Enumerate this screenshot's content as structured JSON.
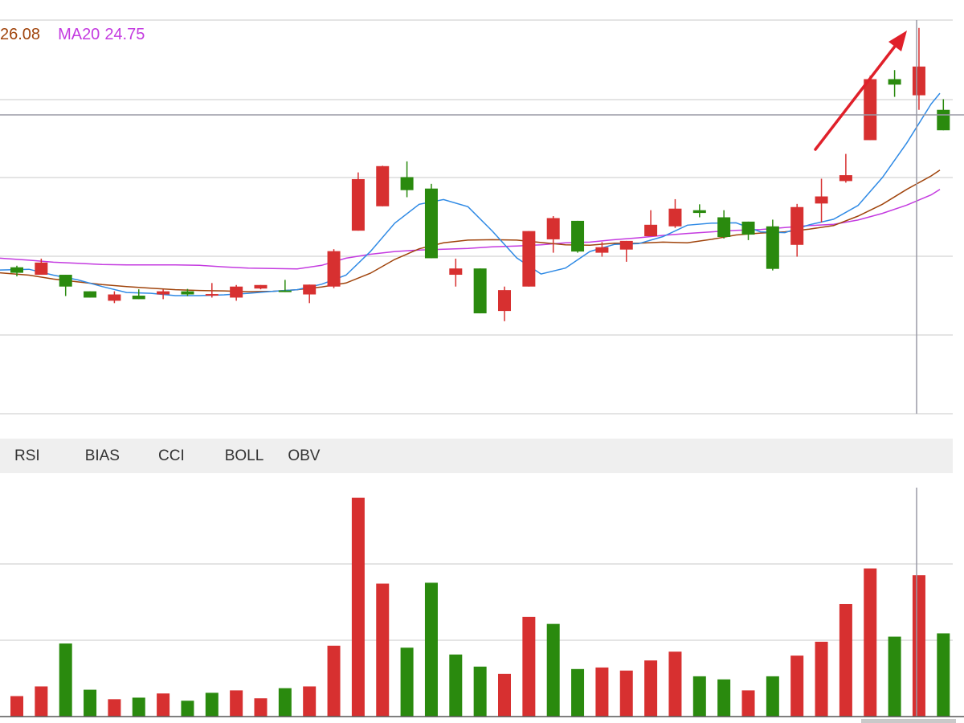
{
  "legend": {
    "ma10_value": "26.08",
    "ma20_label": "MA20",
    "ma20_value": "24.75"
  },
  "tabs": [
    "RSI",
    "BIAS",
    "CCI",
    "BOLL",
    "OBV"
  ],
  "colors": {
    "up": "#d73030",
    "down": "#2a8a0e",
    "ma5": "#2f8ae5",
    "ma10": "#a0440c",
    "ma20": "#c43be0",
    "grid": "#dcdcdc",
    "crosshair": "#9a9aa6",
    "arrow": "#e0202a"
  },
  "chart_data": [
    {
      "type": "candlestick",
      "panel": "price",
      "price_range": [
        0,
        100
      ],
      "candles": [
        {
          "o": 37.2,
          "c": 35.8,
          "h": 37.6,
          "l": 34.9
        },
        {
          "o": 35.3,
          "c": 38.4,
          "h": 39.4,
          "l": 35.3
        },
        {
          "o": 35.3,
          "c": 32.3,
          "h": 35.3,
          "l": 29.9
        },
        {
          "o": 31.1,
          "c": 29.5,
          "h": 31.1,
          "l": 29.5
        },
        {
          "o": 28.7,
          "c": 30.3,
          "h": 31.1,
          "l": 28.1
        },
        {
          "o": 30.0,
          "c": 29.1,
          "h": 31.6,
          "l": 29.1
        },
        {
          "o": 30.3,
          "c": 31.1,
          "h": 31.6,
          "l": 29.1
        },
        {
          "o": 31.1,
          "c": 30.3,
          "h": 31.7,
          "l": 29.9
        },
        {
          "o": 30.3,
          "c": 30.4,
          "h": 33.2,
          "l": 29.5
        },
        {
          "o": 29.5,
          "c": 32.3,
          "h": 32.7,
          "l": 28.7
        },
        {
          "o": 31.8,
          "c": 32.7,
          "h": 32.7,
          "l": 31.6
        },
        {
          "o": 31.3,
          "c": 30.9,
          "h": 34.0,
          "l": 30.9
        },
        {
          "o": 30.3,
          "c": 32.8,
          "h": 32.8,
          "l": 28.1
        },
        {
          "o": 32.3,
          "c": 41.3,
          "h": 41.8,
          "l": 31.9
        },
        {
          "o": 46.5,
          "c": 59.6,
          "h": 61.3,
          "l": 46.5
        },
        {
          "o": 52.7,
          "c": 62.9,
          "h": 63.0,
          "l": 52.7
        },
        {
          "o": 60.1,
          "c": 56.8,
          "h": 64.1,
          "l": 55.0
        },
        {
          "o": 57.2,
          "c": 39.5,
          "h": 58.4,
          "l": 39.5
        },
        {
          "o": 35.3,
          "c": 36.9,
          "h": 39.4,
          "l": 32.3
        },
        {
          "o": 36.9,
          "c": 25.5,
          "h": 36.9,
          "l": 25.5
        },
        {
          "o": 26.1,
          "c": 31.4,
          "h": 32.3,
          "l": 23.5
        },
        {
          "o": 32.3,
          "c": 46.4,
          "h": 46.4,
          "l": 32.3
        },
        {
          "o": 44.3,
          "c": 49.7,
          "h": 50.2,
          "l": 40.9
        },
        {
          "o": 49.0,
          "c": 41.2,
          "h": 49.0,
          "l": 40.9
        },
        {
          "o": 40.9,
          "c": 42.3,
          "h": 43.6,
          "l": 39.9
        },
        {
          "o": 41.7,
          "c": 43.9,
          "h": 43.9,
          "l": 38.6
        },
        {
          "o": 45.1,
          "c": 48.0,
          "h": 51.7,
          "l": 45.1
        },
        {
          "o": 47.6,
          "c": 52.1,
          "h": 54.5,
          "l": 47.2
        },
        {
          "o": 51.7,
          "c": 51.0,
          "h": 53.2,
          "l": 49.9
        },
        {
          "o": 49.9,
          "c": 44.9,
          "h": 51.7,
          "l": 44.5
        },
        {
          "o": 48.8,
          "c": 45.5,
          "h": 48.8,
          "l": 44.1
        },
        {
          "o": 47.6,
          "c": 36.8,
          "h": 49.3,
          "l": 36.4
        },
        {
          "o": 42.9,
          "c": 52.5,
          "h": 53.3,
          "l": 39.9
        },
        {
          "o": 53.4,
          "c": 55.2,
          "h": 59.7,
          "l": 48.6
        },
        {
          "o": 59.1,
          "c": 60.6,
          "h": 66.0,
          "l": 58.7
        },
        {
          "o": 69.5,
          "c": 85.0,
          "h": 85.9,
          "l": 69.5
        },
        {
          "o": 85.0,
          "c": 83.6,
          "h": 87.3,
          "l": 80.5
        },
        {
          "o": 80.9,
          "c": 88.2,
          "h": 98.0,
          "l": 77.2
        },
        {
          "o": 77.2,
          "c": 72.0,
          "h": 79.9,
          "l": 72.0
        }
      ],
      "ma5": [
        36.5,
        36.7,
        35.2,
        34.0,
        32.3,
        30.8,
        30.6,
        30.0,
        30.0,
        30.2,
        30.6,
        31.1,
        31.5,
        32.9,
        35.2,
        41.2,
        48.4,
        53.2,
        54.4,
        52.6,
        46.4,
        39.6,
        35.5,
        37.0,
        41.2,
        43.0,
        43.2,
        45.0,
        47.9,
        48.4,
        48.5,
        46.2,
        46.0,
        48.0,
        49.4,
        52.9,
        60.0,
        68.8,
        78.7,
        81.4
      ],
      "ma10": [
        35.8,
        35.2,
        34.2,
        33.5,
        32.8,
        32.3,
        31.9,
        31.5,
        31.3,
        31.2,
        31.0,
        31.1,
        31.5,
        32.2,
        33.2,
        35.7,
        39.2,
        41.9,
        43.4,
        44.1,
        44.2,
        44.1,
        43.5,
        42.9,
        42.8,
        43.3,
        43.3,
        43.6,
        43.4,
        44.3,
        45.4,
        45.9,
        46.2,
        46.9,
        47.8,
        50.2,
        53.2,
        57.0,
        60.4,
        61.9
      ],
      "ma20": [
        39.5,
        39.0,
        38.5,
        38.2,
        37.9,
        37.8,
        37.8,
        37.8,
        37.7,
        37.3,
        37.0,
        36.9,
        36.8,
        37.7,
        39.5,
        40.5,
        41.2,
        41.6,
        41.8,
        42.0,
        42.4,
        42.6,
        42.9,
        43.4,
        43.6,
        44.2,
        44.7,
        45.3,
        45.8,
        46.2,
        46.6,
        46.8,
        47.3,
        47.8,
        48.1,
        49.2,
        50.9,
        53.0,
        55.6,
        57.0
      ]
    },
    {
      "type": "bar",
      "panel": "volume",
      "y_range": [
        0,
        100
      ],
      "values": [
        9.3,
        13.7,
        33.2,
        12.2,
        7.9,
        8.6,
        10.5,
        7.2,
        10.8,
        11.9,
        8.3,
        12.9,
        13.7,
        32.2,
        99.4,
        60.4,
        31.3,
        60.8,
        28.2,
        22.7,
        19.4,
        45.3,
        42.1,
        21.6,
        22.3,
        20.9,
        25.5,
        29.5,
        18.3,
        16.9,
        11.9,
        18.3,
        27.7,
        34.0,
        51.1,
        67.3,
        36.3,
        64.2,
        37.8
      ],
      "directions": [
        "up",
        "up",
        "down",
        "down",
        "up",
        "down",
        "up",
        "down",
        "down",
        "up",
        "up",
        "down",
        "up",
        "up",
        "up",
        "up",
        "down",
        "down",
        "down",
        "down",
        "up",
        "up",
        "down",
        "down",
        "up",
        "up",
        "up",
        "up",
        "down",
        "down",
        "up",
        "down",
        "up",
        "up",
        "up",
        "up",
        "down",
        "up",
        "down"
      ]
    }
  ]
}
